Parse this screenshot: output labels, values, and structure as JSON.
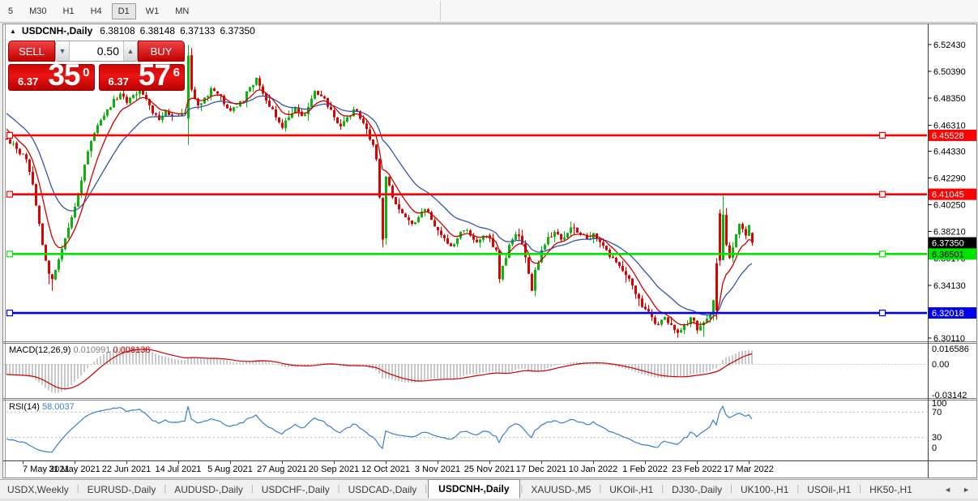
{
  "toolbar": {
    "timeframes": [
      "5",
      "M30",
      "H1",
      "H4",
      "D1",
      "W1",
      "MN"
    ],
    "active_timeframe": "D1"
  },
  "window": {
    "title": {
      "collapse_icon": "▲",
      "symbol": "USDCNH-,Daily",
      "open": "6.38108",
      "high": "6.38148",
      "low": "6.37133",
      "close": "6.37350"
    },
    "trade_panel": {
      "sell_label": "SELL",
      "buy_label": "BUY",
      "volume": "0.50",
      "decrease_icon": "▼",
      "increase_icon": "▲",
      "sell_price": {
        "prefix": "6.37",
        "big": "35",
        "sup": "0"
      },
      "buy_price": {
        "prefix": "6.37",
        "big": "57",
        "sup": "6"
      }
    }
  },
  "macd_panel": {
    "label": "MACD(12,26,9)",
    "value_main": "0.010991",
    "value_signal": "0.008138",
    "axis": [
      "0.016586",
      "0.00",
      "-0.03142"
    ]
  },
  "rsi_panel": {
    "label": "RSI(14)",
    "value": "58.0037",
    "axis": [
      "100",
      "70",
      "30",
      "0"
    ]
  },
  "tabs": {
    "items": [
      "USDX,Weekly",
      "EURUSD-,Daily",
      "AUDUSD-,Daily",
      "USDCHF-,Daily",
      "USDCAD-,Daily",
      "USDCNH-,Daily",
      "XAUUSD-,M5",
      "UKOil-,H1",
      "DJ30-,Daily",
      "UK100-,H1",
      "USOil-,H1",
      "HK50-,H1"
    ],
    "active": "USDCNH-,Daily",
    "scroll_left": "◄",
    "scroll_right": "►"
  },
  "chart_data": {
    "type": "candlestick",
    "title": "USDCNH-,Daily",
    "timeframe": "Daily",
    "ylim": [
      6.29925,
      6.53971
    ],
    "price_ticks": [
      "6.52430",
      "6.50390",
      "6.48350",
      "6.46310",
      "6.44330",
      "6.42290",
      "6.40250",
      "6.38210",
      "6.36170",
      "6.34130",
      "6.30110"
    ],
    "date_labels": [
      "7 May 2021",
      "31 May 2021",
      "22 Jun 2021",
      "14 Jul 2021",
      "5 Aug 2021",
      "27 Aug 2021",
      "20 Sep 2021",
      "12 Oct 2021",
      "3 Nov 2021",
      "25 Nov 2021",
      "17 Dec 2021",
      "10 Jan 2022",
      "1 Feb 2022",
      "23 Feb 2022",
      "17 Mar 2022"
    ],
    "levels": [
      {
        "price": 6.45528,
        "label": "6.45528",
        "color": "#ff0000",
        "label_text_color": "#ffffff"
      },
      {
        "price": 6.41045,
        "label": "6.41045",
        "color": "#ff0000",
        "label_text_color": "#ffffff"
      },
      {
        "price": 6.36501,
        "label": "6.36501",
        "color": "#00e400",
        "label_text_color": "#000000"
      },
      {
        "price": 6.32018,
        "label": "6.32018",
        "color": "#0000f0",
        "label_text_color": "#ffffff"
      }
    ],
    "current_price_label": {
      "price": 6.3735,
      "label": "6.37350",
      "bg": "#000000",
      "fg": "#ffffff"
    },
    "last_candle": {
      "open": 6.38108,
      "high": 6.38148,
      "low": 6.37133,
      "close": 6.3735
    },
    "bars_total": 231,
    "up_color": "#0ab50a",
    "down_color": "#e00000",
    "ma_fast": {
      "period": 8,
      "color": "#cc0000"
    },
    "ma_slow": {
      "period": 21,
      "color": "#3355a8"
    },
    "macd": {
      "fast": 12,
      "slow": 26,
      "signal_period": 9,
      "hist_color": "#c8c8c8",
      "signal_color": "#cc0000",
      "last_values": [
        0.010991,
        0.008138
      ]
    },
    "rsi": {
      "period": 14,
      "color": "#3e7ec8",
      "last_value": 58.0037,
      "guide_levels": [
        70,
        30
      ]
    },
    "path_anchors": [
      [
        0,
        6.452
      ],
      [
        2,
        6.449
      ],
      [
        4,
        6.441
      ],
      [
        6,
        6.437
      ],
      [
        8,
        6.418
      ],
      [
        9,
        6.402
      ],
      [
        10,
        6.388
      ],
      [
        11,
        6.372
      ],
      [
        12,
        6.36
      ],
      [
        13,
        6.35
      ],
      [
        14,
        6.346
      ],
      [
        15,
        6.353
      ],
      [
        16,
        6.361
      ],
      [
        17,
        6.369
      ],
      [
        18,
        6.377
      ],
      [
        19,
        6.385
      ],
      [
        20,
        6.393
      ],
      [
        21,
        6.401
      ],
      [
        22,
        6.411
      ],
      [
        23,
        6.421
      ],
      [
        24,
        6.433
      ],
      [
        25,
        6.443
      ],
      [
        26,
        6.451
      ],
      [
        27,
        6.457
      ],
      [
        28,
        6.463
      ],
      [
        29,
        6.467
      ],
      [
        31,
        6.475
      ],
      [
        33,
        6.483
      ],
      [
        35,
        6.487
      ],
      [
        37,
        6.48
      ],
      [
        39,
        6.486
      ],
      [
        41,
        6.49
      ],
      [
        43,
        6.483
      ],
      [
        45,
        6.472
      ],
      [
        47,
        6.467
      ],
      [
        49,
        6.474
      ],
      [
        51,
        6.47
      ],
      [
        53,
        6.47
      ],
      [
        55,
        6.472
      ],
      [
        56,
        6.516
      ],
      [
        57,
        6.49
      ],
      [
        59,
        6.478
      ],
      [
        61,
        6.484
      ],
      [
        63,
        6.491
      ],
      [
        65,
        6.487
      ],
      [
        67,
        6.479
      ],
      [
        69,
        6.474
      ],
      [
        71,
        6.477
      ],
      [
        73,
        6.481
      ],
      [
        75,
        6.492
      ],
      [
        77,
        6.499
      ],
      [
        79,
        6.487
      ],
      [
        81,
        6.477
      ],
      [
        83,
        6.469
      ],
      [
        85,
        6.461
      ],
      [
        87,
        6.469
      ],
      [
        89,
        6.477
      ],
      [
        91,
        6.47
      ],
      [
        93,
        6.477
      ],
      [
        95,
        6.489
      ],
      [
        97,
        6.485
      ],
      [
        99,
        6.477
      ],
      [
        101,
        6.469
      ],
      [
        103,
        6.462
      ],
      [
        105,
        6.469
      ],
      [
        107,
        6.475
      ],
      [
        109,
        6.468
      ],
      [
        111,
        6.46
      ],
      [
        113,
        6.448
      ],
      [
        114,
        6.437
      ],
      [
        115,
        6.408
      ],
      [
        116,
        6.376
      ],
      [
        117,
        6.424
      ],
      [
        119,
        6.408
      ],
      [
        121,
        6.399
      ],
      [
        123,
        6.393
      ],
      [
        125,
        6.388
      ],
      [
        127,
        6.393
      ],
      [
        129,
        6.399
      ],
      [
        131,
        6.391
      ],
      [
        133,
        6.383
      ],
      [
        135,
        6.377
      ],
      [
        137,
        6.371
      ],
      [
        139,
        6.377
      ],
      [
        141,
        6.383
      ],
      [
        143,
        6.379
      ],
      [
        145,
        6.374
      ],
      [
        147,
        6.379
      ],
      [
        149,
        6.377
      ],
      [
        151,
        6.368
      ],
      [
        152,
        6.346
      ],
      [
        153,
        6.356
      ],
      [
        155,
        6.372
      ],
      [
        157,
        6.38
      ],
      [
        159,
        6.373
      ],
      [
        161,
        6.35
      ],
      [
        162,
        6.337
      ],
      [
        163,
        6.353
      ],
      [
        165,
        6.368
      ],
      [
        167,
        6.378
      ],
      [
        169,
        6.382
      ],
      [
        171,
        6.376
      ],
      [
        173,
        6.381
      ],
      [
        175,
        6.385
      ],
      [
        177,
        6.38
      ],
      [
        179,
        6.376
      ],
      [
        181,
        6.381
      ],
      [
        183,
        6.374
      ],
      [
        185,
        6.368
      ],
      [
        187,
        6.362
      ],
      [
        189,
        6.356
      ],
      [
        191,
        6.349
      ],
      [
        193,
        6.341
      ],
      [
        195,
        6.331
      ],
      [
        197,
        6.323
      ],
      [
        199,
        6.317
      ],
      [
        201,
        6.311
      ],
      [
        203,
        6.317
      ],
      [
        205,
        6.311
      ],
      [
        207,
        6.305
      ],
      [
        209,
        6.311
      ],
      [
        211,
        6.317
      ],
      [
        213,
        6.307
      ],
      [
        215,
        6.313
      ],
      [
        217,
        6.319
      ],
      [
        218,
        6.33
      ],
      [
        219,
        6.322
      ],
      [
        220,
        6.36
      ],
      [
        221,
        6.395
      ],
      [
        222,
        6.372
      ],
      [
        223,
        6.362
      ],
      [
        224,
        6.37
      ],
      [
        225,
        6.38
      ],
      [
        226,
        6.388
      ],
      [
        227,
        6.384
      ],
      [
        228,
        6.379
      ],
      [
        229,
        6.387
      ],
      [
        230,
        6.3735
      ]
    ],
    "candle_overrides": {
      "13": {
        "l": 6.342
      },
      "14": {
        "l": 6.337
      },
      "56": {
        "o": 6.468,
        "h": 6.524,
        "l": 6.448
      },
      "116": {
        "l": 6.37
      },
      "117": {
        "o": 6.377,
        "l": 6.372
      },
      "207": {
        "l": 6.3013
      },
      "215": {
        "l": 6.3022
      },
      "219": {
        "o": 6.358,
        "h": 6.362,
        "l": 6.315
      },
      "220": {
        "o": 6.396,
        "h": 6.399,
        "l": 6.356
      },
      "221": {
        "h": 6.4105,
        "l": 6.378
      }
    },
    "pre_seed_closes": [
      6.535,
      6.528,
      6.531,
      6.524,
      6.527,
      6.518,
      6.521,
      6.512,
      6.516,
      6.507,
      6.511,
      6.503,
      6.507,
      6.499,
      6.503,
      6.496,
      6.499,
      6.492,
      6.495,
      6.489,
      6.492,
      6.485,
      6.488,
      6.481,
      6.484,
      6.478,
      6.481,
      6.475,
      6.478,
      6.472,
      6.475,
      6.469,
      6.472,
      6.466,
      6.469,
      6.463,
      6.466,
      6.46,
      6.457,
      6.453
    ]
  }
}
